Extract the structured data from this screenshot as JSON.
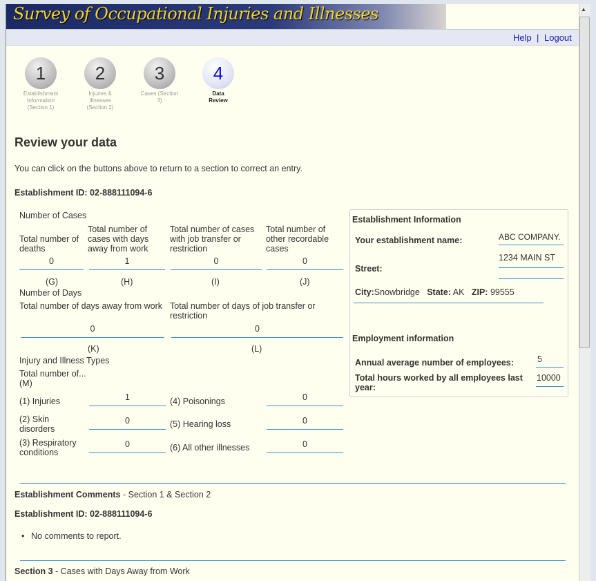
{
  "header": {
    "title": "Survey of Occupational Injuries and Illnesses",
    "help": "Help",
    "sep": "|",
    "logout": "Logout"
  },
  "steps": [
    {
      "num": "1",
      "label": "Establishment Information (Section 1)"
    },
    {
      "num": "2",
      "label": "Injuries & Illnesses (Section 2)"
    },
    {
      "num": "3",
      "label": "Cases (Section 3)"
    },
    {
      "num": "4",
      "label": "Data Review"
    }
  ],
  "page": {
    "title": "Review your data",
    "intro": "You can click on the buttons above to return to a section to correct an entry.",
    "est_id": "Establishment ID: 02-888111094-6"
  },
  "cases": {
    "heading": "Number of Cases",
    "cols": [
      {
        "label": "Total number of deaths",
        "value": "0",
        "code": "(G)"
      },
      {
        "label": "Total number of cases with days away from work",
        "value": "1",
        "code": "(H)"
      },
      {
        "label": "Total number of cases with job transfer or restriction",
        "value": "0",
        "code": "(I)"
      },
      {
        "label": "Total number of other recordable cases",
        "value": "0",
        "code": "(J)"
      }
    ]
  },
  "days": {
    "heading": "Number of Days",
    "cols": [
      {
        "label": "Total number of days away from work",
        "value": "0",
        "code": "(K)"
      },
      {
        "label": "Total number of days of job transfer or restriction",
        "value": "0",
        "code": "(L)"
      }
    ]
  },
  "types": {
    "heading": "Injury and Illness Types",
    "sub": "Total number of...",
    "code": "(M)",
    "items": [
      {
        "label": "(1) Injuries",
        "value": "1"
      },
      {
        "label": "(2) Skin disorders",
        "value": "0"
      },
      {
        "label": "(3) Respiratory conditions",
        "value": "0"
      },
      {
        "label": "(4) Poisonings",
        "value": "0"
      },
      {
        "label": "(5) Hearing loss",
        "value": "0"
      },
      {
        "label": "(6) All other illnesses",
        "value": "0"
      }
    ]
  },
  "establishment": {
    "heading": "Establishment Information",
    "name_label": "Your establishment name:",
    "name": "ABC COMPANY.",
    "street_label": "Street:",
    "street": "1234 MAIN ST",
    "city_label": "City:",
    "city": "Snowbridge",
    "state_label": "State:",
    "state": "AK",
    "zip_label": "ZIP:",
    "zip": "99555"
  },
  "employment": {
    "heading": "Employment information",
    "avg_label": "Annual average number of employees:",
    "avg": "5",
    "hours_label": "Total hours worked by all employees last year:",
    "hours": "10000"
  },
  "comments": {
    "title": "Establishment Comments",
    "suffix": " - Section 1 & Section 2",
    "est_id": "Establishment ID: 02-888111094-6",
    "items": [
      "No comments to report."
    ]
  },
  "section3": {
    "title": "Section 3",
    "suffix": " - Cases with Days Away from Work"
  }
}
